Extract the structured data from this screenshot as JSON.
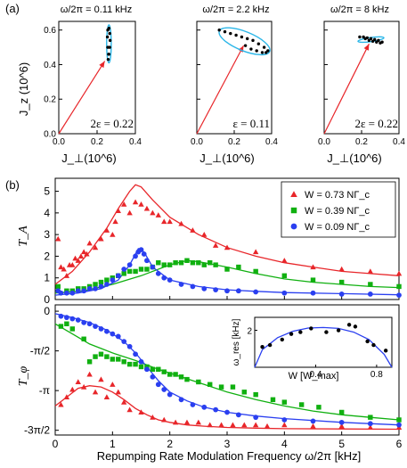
{
  "figure": {
    "panel_a_label": "(a)",
    "panel_b_label": "(b)"
  },
  "chart_data": [
    {
      "type": "scatter",
      "panel": "a1",
      "title": "ω/2π = 0.11 kHz",
      "ylabel": "J_z (10^6)",
      "xlabel": "J_⊥(10^6)",
      "annotation": "2ε = 0.22",
      "xlim": [
        0,
        0.4
      ],
      "ylim": [
        0,
        0.65
      ],
      "xticks": [
        "0.0",
        "0.2",
        "0.4"
      ],
      "yticks": [
        "0.0",
        "0.2",
        "0.4",
        "0.6"
      ],
      "arrow": {
        "x": [
          0,
          0.24
        ],
        "y": [
          0,
          0.42
        ]
      },
      "ellipse": {
        "cx": 0.262,
        "cy": 0.52,
        "rx": 0.012,
        "ry": 0.11
      },
      "x": [
        0.258,
        0.262,
        0.266,
        0.268,
        0.266,
        0.262,
        0.256,
        0.254,
        0.256,
        0.26
      ],
      "y": [
        0.43,
        0.46,
        0.5,
        0.54,
        0.58,
        0.61,
        0.6,
        0.56,
        0.5,
        0.46
      ]
    },
    {
      "type": "scatter",
      "panel": "a2",
      "title": "ω/2π = 2.2 kHz",
      "xlabel": "J_⊥(10^6)",
      "annotation": "ε = 0.11",
      "xlim": [
        0,
        0.4
      ],
      "ylim": [
        0,
        0.65
      ],
      "xticks": [
        "0.0",
        "0.2",
        "0.4"
      ],
      "arrow": {
        "x": [
          0,
          0.25
        ],
        "y": [
          0,
          0.51
        ]
      },
      "ellipse": {
        "cx": 0.255,
        "cy": 0.535,
        "rx": 0.145,
        "ry": 0.055,
        "rotate": 22
      },
      "x": [
        0.12,
        0.15,
        0.18,
        0.21,
        0.24,
        0.27,
        0.3,
        0.33,
        0.36,
        0.38,
        0.37,
        0.35,
        0.32,
        0.29,
        0.26
      ],
      "y": [
        0.6,
        0.59,
        0.58,
        0.57,
        0.56,
        0.55,
        0.54,
        0.52,
        0.5,
        0.48,
        0.47,
        0.47,
        0.48,
        0.49,
        0.51
      ]
    },
    {
      "type": "scatter",
      "panel": "a3",
      "title": "ω/2π = 8 kHz",
      "xlabel": "J_⊥(10^6)",
      "annotation": "2ε = 0.22",
      "xlim": [
        0,
        0.4
      ],
      "ylim": [
        0,
        0.65
      ],
      "xticks": [
        "0.0",
        "0.2",
        "0.4"
      ],
      "arrow": {
        "x": [
          0,
          0.24
        ],
        "y": [
          0,
          0.52
        ]
      },
      "ellipse": {
        "cx": 0.25,
        "cy": 0.545,
        "rx": 0.07,
        "ry": 0.012,
        "rotate": -8
      },
      "x": [
        0.19,
        0.21,
        0.23,
        0.25,
        0.27,
        0.29,
        0.31,
        0.3,
        0.28,
        0.26,
        0.24,
        0.22
      ],
      "y": [
        0.56,
        0.56,
        0.555,
        0.55,
        0.545,
        0.54,
        0.53,
        0.525,
        0.53,
        0.535,
        0.54,
        0.55
      ]
    },
    {
      "type": "line",
      "panel": "b-top",
      "ylabel": "T_A",
      "xlim": [
        0,
        6
      ],
      "ylim": [
        0,
        5.6
      ],
      "yticks": [
        "0",
        "1",
        "2",
        "3",
        "4",
        "5"
      ],
      "legend_position": "top-right",
      "series": [
        {
          "name": "W = 0.73 NΓ_c",
          "color": "#e8262a",
          "marker": "triangle",
          "x": [
            0.05,
            0.1,
            0.15,
            0.2,
            0.25,
            0.3,
            0.35,
            0.4,
            0.45,
            0.5,
            0.55,
            0.6,
            0.7,
            0.8,
            0.9,
            1.0,
            1.05,
            1.1,
            1.2,
            1.3,
            1.4,
            1.5,
            1.6,
            1.7,
            1.8,
            1.9,
            2.0,
            2.2,
            2.4,
            2.6,
            2.8,
            3.0,
            3.5,
            4.0,
            4.5,
            5.0,
            5.5,
            6.0
          ],
          "y": [
            2.8,
            1.5,
            1.4,
            1.1,
            1.6,
            1.6,
            1.9,
            1.8,
            2.0,
            2.2,
            2.1,
            2.6,
            2.4,
            2.8,
            3.2,
            3.0,
            3.6,
            4.1,
            4.4,
            4.0,
            4.5,
            4.4,
            4.2,
            4.0,
            3.9,
            3.6,
            3.6,
            3.5,
            3.2,
            3.0,
            2.5,
            2.4,
            2.2,
            1.8,
            1.5,
            1.4,
            1.3,
            1.2
          ]
        },
        {
          "name": "W = 0.39 NΓ_c",
          "color": "#10b010",
          "marker": "square",
          "x": [
            0.05,
            0.2,
            0.3,
            0.4,
            0.5,
            0.6,
            0.7,
            0.8,
            0.9,
            1.0,
            1.1,
            1.2,
            1.3,
            1.4,
            1.5,
            1.6,
            1.7,
            1.8,
            1.9,
            2.0,
            2.1,
            2.2,
            2.3,
            2.4,
            2.5,
            2.6,
            2.7,
            2.8,
            3.0,
            3.2,
            3.5,
            4.0,
            4.5,
            5.0,
            5.5,
            6.0
          ],
          "y": [
            0.6,
            0.4,
            0.4,
            0.5,
            0.5,
            0.6,
            0.7,
            0.8,
            0.9,
            1.0,
            1.1,
            1.2,
            1.3,
            1.3,
            1.4,
            1.4,
            1.5,
            1.7,
            1.6,
            1.6,
            1.7,
            1.7,
            1.8,
            1.7,
            1.7,
            1.6,
            1.7,
            1.6,
            1.4,
            1.5,
            1.3,
            1.1,
            0.9,
            0.8,
            0.7,
            0.6
          ]
        },
        {
          "name": "W = 0.09 NΓ_c",
          "color": "#2a3ff0",
          "marker": "circle",
          "x": [
            0.05,
            0.1,
            0.2,
            0.3,
            0.4,
            0.5,
            0.6,
            0.7,
            0.8,
            0.9,
            1.0,
            1.1,
            1.2,
            1.3,
            1.4,
            1.45,
            1.5,
            1.55,
            1.6,
            1.7,
            1.8,
            1.9,
            2.0,
            2.2,
            2.4,
            2.6,
            2.8,
            3.0,
            3.2,
            3.5,
            4.0,
            4.5,
            5.0,
            5.5,
            6.0
          ],
          "y": [
            0.4,
            0.3,
            0.3,
            0.3,
            0.4,
            0.4,
            0.5,
            0.5,
            0.6,
            0.7,
            0.9,
            1.1,
            1.4,
            1.6,
            2.0,
            2.2,
            2.3,
            2.1,
            1.8,
            1.5,
            1.2,
            1.0,
            0.9,
            0.7,
            0.6,
            0.5,
            0.45,
            0.4,
            0.4,
            0.35,
            0.3,
            0.3,
            0.25,
            0.25,
            0.2
          ]
        }
      ],
      "fits": [
        {
          "color": "#e8262a",
          "x": [
            0,
            0.3,
            0.6,
            0.9,
            1.1,
            1.3,
            1.4,
            1.5,
            1.7,
            2.0,
            2.5,
            3.0,
            3.5,
            4.0,
            4.5,
            5.0,
            5.5,
            6.0
          ],
          "y": [
            0.7,
            1.3,
            2.2,
            3.3,
            4.2,
            5.0,
            5.3,
            5.2,
            4.6,
            3.8,
            3.0,
            2.4,
            2.0,
            1.7,
            1.5,
            1.3,
            1.2,
            1.1
          ]
        },
        {
          "color": "#10b010",
          "x": [
            0,
            0.5,
            1.0,
            1.5,
            2.0,
            2.3,
            2.5,
            3.0,
            3.5,
            4.0,
            4.5,
            5.0,
            5.5,
            6.0
          ],
          "y": [
            0.3,
            0.4,
            0.7,
            1.1,
            1.6,
            1.8,
            1.75,
            1.5,
            1.2,
            0.95,
            0.8,
            0.7,
            0.6,
            0.55
          ]
        },
        {
          "color": "#2a3ff0",
          "x": [
            0,
            0.4,
            0.8,
            1.1,
            1.3,
            1.45,
            1.55,
            1.7,
            2.0,
            2.5,
            3.0,
            3.5,
            4.0,
            5.0,
            6.0
          ],
          "y": [
            0.2,
            0.3,
            0.5,
            0.9,
            1.6,
            2.35,
            2.2,
            1.5,
            0.9,
            0.6,
            0.45,
            0.38,
            0.32,
            0.27,
            0.22
          ]
        }
      ]
    },
    {
      "type": "line",
      "panel": "b-bottom",
      "ylabel": "T_φ",
      "xlabel": "Repumping Rate Modulation Frequency ω/2π [kHz]",
      "xlim": [
        0,
        6
      ],
      "ylim": [
        -4.9,
        0.25
      ],
      "xticks": [
        "0",
        "1",
        "2",
        "3",
        "4",
        "5",
        "6"
      ],
      "ytick_values": [
        -4.712,
        -3.1416,
        -1.5708,
        0
      ],
      "ytick_labels": [
        "-3π/2",
        "-π",
        "-π/2",
        "0"
      ],
      "series": [
        {
          "name": "W = 0.73 NΓ_c",
          "color": "#e8262a",
          "marker": "triangle",
          "x": [
            0.1,
            0.2,
            0.3,
            0.4,
            0.5,
            0.6,
            0.7,
            0.8,
            0.9,
            1.0,
            1.1,
            1.2,
            1.3,
            1.5,
            1.7,
            1.9,
            2.1,
            2.3,
            2.5,
            2.7,
            2.9,
            3.1,
            3.3,
            3.5,
            3.7,
            4.0,
            4.5,
            5.0,
            5.5,
            6.0
          ],
          "y": [
            -3.7,
            -3.4,
            -3.1,
            -2.8,
            -3.0,
            -2.5,
            -3.2,
            -2.7,
            -3.4,
            -2.9,
            -3.2,
            -3.6,
            -3.9,
            -4.0,
            -4.2,
            -4.3,
            -4.4,
            -4.4,
            -4.4,
            -4.5,
            -4.5,
            -4.5,
            -4.5,
            -4.5,
            -4.55,
            -4.5,
            -4.55,
            -4.55,
            -4.6,
            -4.6
          ]
        },
        {
          "name": "W = 0.39 NΓ_c",
          "color": "#10b010",
          "marker": "square",
          "x": [
            0.1,
            0.2,
            0.3,
            0.5,
            0.6,
            0.7,
            0.8,
            0.9,
            1.0,
            1.1,
            1.2,
            1.3,
            1.4,
            1.5,
            1.6,
            1.7,
            1.8,
            1.9,
            2.0,
            2.1,
            2.2,
            2.3,
            2.5,
            2.7,
            2.9,
            3.1,
            3.3,
            3.5,
            3.8,
            4.0,
            4.3,
            4.6,
            5.0,
            5.5,
            6.0
          ],
          "y": [
            -0.6,
            -0.5,
            -0.7,
            -1.1,
            -2.0,
            -1.8,
            -1.7,
            -1.8,
            -1.9,
            -1.9,
            -2.0,
            -2.1,
            -2.1,
            -2.2,
            -2.2,
            -2.3,
            -2.3,
            -2.4,
            -2.5,
            -2.5,
            -2.6,
            -2.7,
            -2.8,
            -2.9,
            -3.0,
            -3.0,
            -3.2,
            -3.3,
            -3.5,
            -3.6,
            -3.7,
            -3.8,
            -4.0,
            -4.2,
            -4.3
          ]
        },
        {
          "name": "W = 0.09 NΓ_c",
          "color": "#2a3ff0",
          "marker": "circle",
          "x": [
            0.1,
            0.2,
            0.3,
            0.4,
            0.5,
            0.6,
            0.7,
            0.8,
            0.9,
            1.0,
            1.1,
            1.2,
            1.3,
            1.4,
            1.5,
            1.6,
            1.7,
            1.8,
            1.9,
            2.0,
            2.2,
            2.4,
            2.6,
            2.8,
            3.0,
            3.2,
            3.5,
            4.0,
            4.5,
            5.0,
            5.5,
            6.0
          ],
          "y": [
            -0.2,
            -0.25,
            -0.3,
            -0.35,
            -0.45,
            -0.5,
            -0.6,
            -0.7,
            -0.8,
            -0.9,
            -1.0,
            -1.2,
            -1.4,
            -1.7,
            -2.0,
            -2.3,
            -2.6,
            -2.9,
            -3.1,
            -3.3,
            -3.5,
            -3.7,
            -3.8,
            -3.9,
            -4.0,
            -4.1,
            -4.2,
            -4.3,
            -4.35,
            -4.4,
            -4.45,
            -4.5
          ]
        }
      ],
      "fits": [
        {
          "color": "#e8262a",
          "x": [
            0,
            0.2,
            0.4,
            0.6,
            0.8,
            1.0,
            1.2,
            1.4,
            1.6,
            1.8,
            2.0,
            2.3,
            2.6,
            3.0,
            3.5,
            4.0,
            5.0,
            6.0
          ],
          "y": [
            -3.75,
            -3.4,
            -3.05,
            -2.95,
            -3.0,
            -3.2,
            -3.5,
            -3.85,
            -4.1,
            -4.3,
            -4.4,
            -4.5,
            -4.55,
            -4.6,
            -4.63,
            -4.65,
            -4.66,
            -4.67
          ]
        },
        {
          "color": "#10b010",
          "x": [
            0,
            0.3,
            0.6,
            1.0,
            1.4,
            1.8,
            2.2,
            2.6,
            3.0,
            3.5,
            4.0,
            4.5,
            5.0,
            5.5,
            6.0
          ],
          "y": [
            -0.5,
            -0.9,
            -1.3,
            -1.65,
            -1.95,
            -2.3,
            -2.6,
            -2.9,
            -3.2,
            -3.5,
            -3.75,
            -3.95,
            -4.1,
            -4.2,
            -4.3
          ]
        },
        {
          "color": "#2a3ff0",
          "x": [
            0,
            0.3,
            0.6,
            0.9,
            1.2,
            1.4,
            1.6,
            1.8,
            2.0,
            2.3,
            2.6,
            3.0,
            3.5,
            4.0,
            5.0,
            6.0
          ],
          "y": [
            -0.1,
            -0.25,
            -0.45,
            -0.75,
            -1.2,
            -1.65,
            -2.2,
            -2.75,
            -3.2,
            -3.55,
            -3.8,
            -4.0,
            -4.15,
            -4.25,
            -4.4,
            -4.5
          ]
        }
      ]
    },
    {
      "type": "line",
      "panel": "b-inset",
      "ylabel": "ω_res [kHz]",
      "xlabel": "W [W_max]",
      "xlim": [
        0,
        0.9
      ],
      "ylim": [
        0,
        2.7
      ],
      "xticks": [
        "0.4",
        "0.8"
      ],
      "yticks": [
        "2"
      ],
      "series": [
        {
          "name": "",
          "color": "#000000",
          "marker": "circle",
          "x": [
            0.05,
            0.1,
            0.18,
            0.24,
            0.3,
            0.37,
            0.47,
            0.55,
            0.62,
            0.66,
            0.74,
            0.78,
            0.86
          ],
          "y": [
            1.1,
            1.2,
            1.5,
            1.8,
            1.9,
            2.1,
            1.9,
            2.0,
            2.3,
            2.2,
            1.4,
            1.2,
            0.9
          ]
        }
      ],
      "fit": {
        "color": "#2a3ff0",
        "x": [
          0,
          0.05,
          0.15,
          0.25,
          0.35,
          0.45,
          0.55,
          0.65,
          0.75,
          0.85,
          0.9
        ],
        "y": [
          0.0,
          0.95,
          1.6,
          1.95,
          2.12,
          2.15,
          2.1,
          1.9,
          1.5,
          0.7,
          0.0
        ]
      }
    }
  ]
}
